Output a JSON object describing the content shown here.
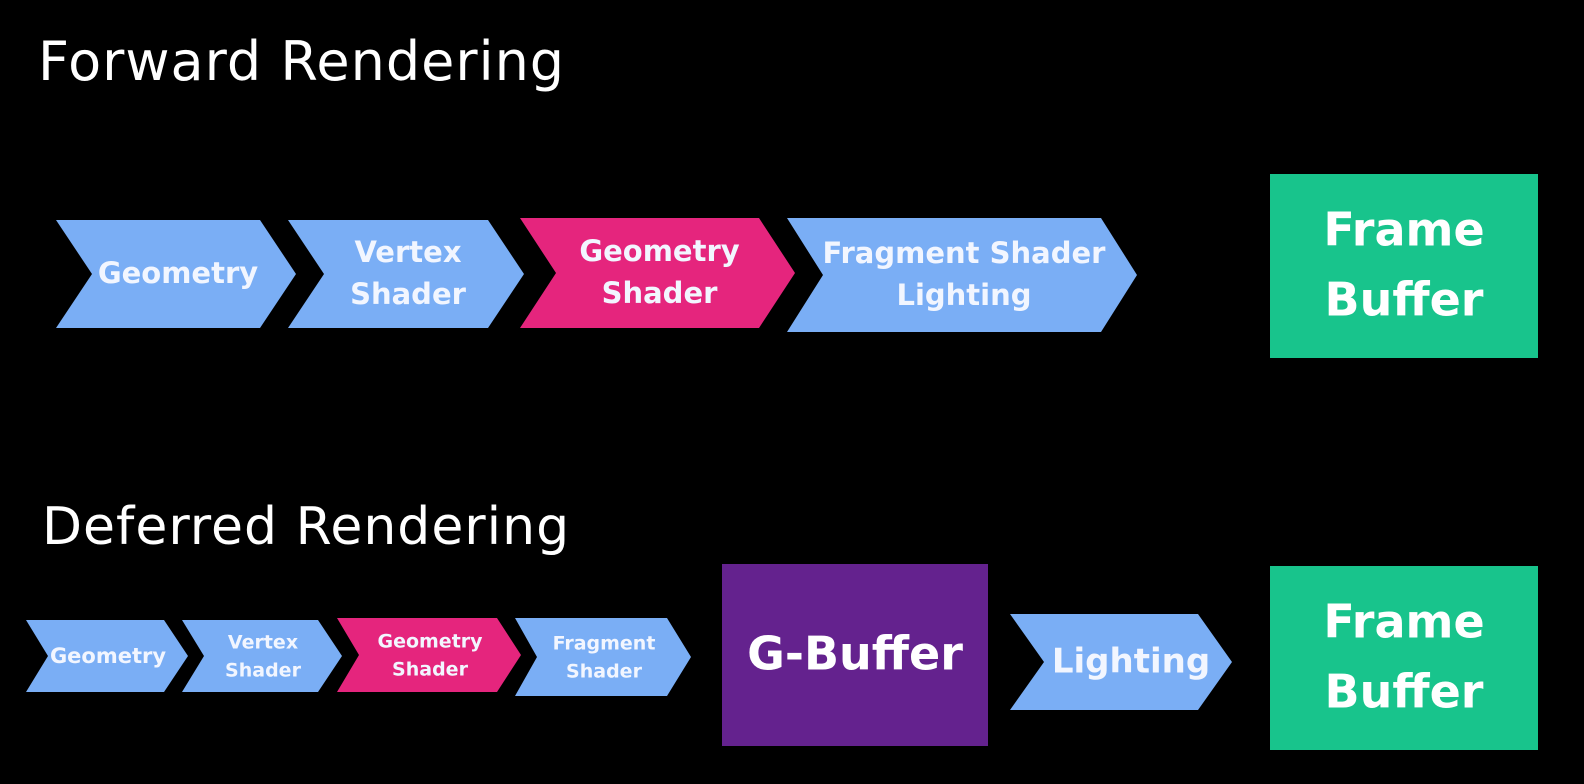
{
  "colors": {
    "background": "#000000",
    "stage": "#7aaef5",
    "geometry_shader": "#e5257d",
    "frame_buffer": "#18c48c",
    "g_buffer": "#64228e",
    "text": "#ffffff"
  },
  "forward": {
    "title": "Forward Rendering",
    "stages": [
      {
        "lines": [
          "Geometry"
        ],
        "kind": "stage"
      },
      {
        "lines": [
          "Vertex",
          "Shader"
        ],
        "kind": "stage"
      },
      {
        "lines": [
          "Geometry",
          "Shader"
        ],
        "kind": "geometry_shader"
      },
      {
        "lines": [
          "Fragment Shader",
          "Lighting"
        ],
        "kind": "stage"
      }
    ],
    "output": {
      "lines": [
        "Frame",
        "Buffer"
      ]
    }
  },
  "deferred": {
    "title": "Deferred Rendering",
    "stages": [
      {
        "lines": [
          "Geometry"
        ],
        "kind": "stage"
      },
      {
        "lines": [
          "Vertex",
          "Shader"
        ],
        "kind": "stage"
      },
      {
        "lines": [
          "Geometry",
          "Shader"
        ],
        "kind": "geometry_shader"
      },
      {
        "lines": [
          "Fragment",
          "Shader"
        ],
        "kind": "stage"
      }
    ],
    "gbuffer": {
      "lines": [
        "G-Buffer"
      ]
    },
    "lighting": {
      "lines": [
        "Lighting"
      ],
      "kind": "stage"
    },
    "output": {
      "lines": [
        "Frame",
        "Buffer"
      ]
    }
  }
}
